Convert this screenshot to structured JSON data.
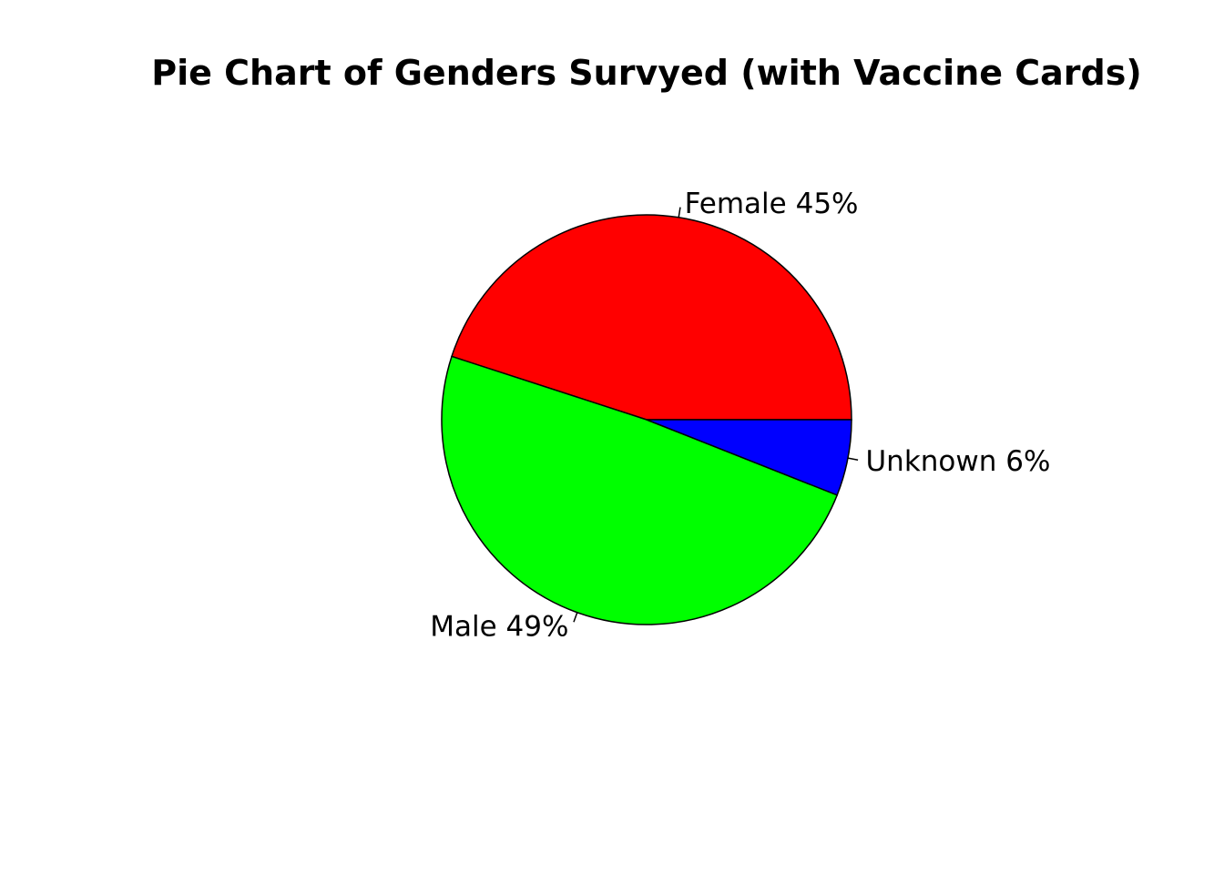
{
  "chart_data": {
    "type": "pie",
    "title": "Pie Chart of Genders Survyed (with Vaccine Cards)",
    "start_angle_deg": 0,
    "direction": "counterclockwise",
    "slices": [
      {
        "label": "Female 45%",
        "value": 45,
        "color": "#ff0000"
      },
      {
        "label": "Male 49%",
        "value": 49,
        "color": "#00ff00"
      },
      {
        "label": "Unknown 6%",
        "value": 6,
        "color": "#0000ff"
      }
    ]
  }
}
